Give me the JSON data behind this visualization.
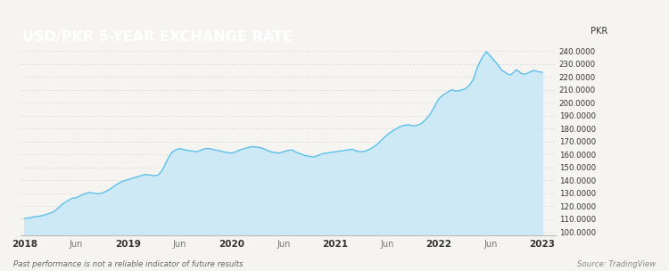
{
  "title": "USD/PKR 5-YEAR EXCHANGE RATE",
  "ylabel": "PKR",
  "source_text": "Source: TradingView",
  "disclaimer_text": "Past performance is not a reliable indicator of future results",
  "background_color": "#f5f4f0",
  "title_bg_color": "#9b6647",
  "title_text_color": "#ffffff",
  "line_color": "#5ec0ea",
  "fill_color_top": "#c8e8f8",
  "fill_color_bottom": "#e8f5fc",
  "dot_color": "#d0cdc8",
  "yticks": [
    100,
    110,
    120,
    130,
    140,
    150,
    160,
    170,
    180,
    190,
    200,
    210,
    220,
    230,
    240
  ],
  "ylim": [
    97,
    248
  ],
  "x_tick_labels": [
    "2018",
    "Jun",
    "2019",
    "Jun",
    "2020",
    "Jun",
    "2021",
    "Jun",
    "2022",
    "Jun",
    "2023"
  ],
  "x_tick_positions": [
    0,
    6,
    12,
    18,
    24,
    30,
    36,
    42,
    48,
    54,
    60
  ],
  "data_x": [
    0,
    0.5,
    1,
    1.5,
    2,
    2.5,
    3,
    3.5,
    4,
    4.5,
    5,
    5.5,
    6,
    6.5,
    7,
    7.5,
    8,
    8.5,
    9,
    9.5,
    10,
    10.5,
    11,
    11.5,
    12,
    12.5,
    13,
    13.5,
    14,
    14.5,
    15,
    15.5,
    16,
    16.5,
    17,
    17.5,
    18,
    18.3,
    18.6,
    19,
    19.5,
    20,
    20.5,
    21,
    21.5,
    22,
    22.5,
    23,
    23.5,
    24,
    24.5,
    25,
    25.5,
    26,
    26.5,
    27,
    27.5,
    28,
    28.5,
    29,
    29.5,
    30,
    30.5,
    31,
    31.5,
    32,
    32.5,
    33,
    33.5,
    34,
    34.5,
    35,
    35.5,
    36,
    36.5,
    37,
    37.5,
    38,
    38.5,
    39,
    39.5,
    40,
    40.5,
    41,
    41.5,
    42,
    42.5,
    43,
    43.5,
    44,
    44.5,
    45,
    45.5,
    46,
    46.5,
    47,
    47.5,
    48,
    48.5,
    49,
    49.5,
    50,
    50.5,
    51,
    51.5,
    52,
    52.5,
    53,
    53.5,
    54,
    54.5,
    55,
    55.3,
    55.6,
    56,
    56.3,
    56.6,
    57,
    57.3,
    57.6,
    58,
    58.5,
    59,
    59.5,
    60
  ],
  "data_y": [
    110.5,
    110.8,
    111.5,
    112.0,
    112.5,
    113.5,
    114.5,
    116.0,
    119.0,
    122.0,
    124.0,
    126.0,
    126.5,
    128.0,
    129.5,
    130.5,
    130.0,
    129.5,
    130.0,
    131.5,
    133.5,
    136.0,
    138.0,
    139.5,
    140.5,
    141.5,
    142.5,
    143.5,
    144.5,
    144.0,
    143.5,
    144.0,
    148.0,
    155.0,
    161.0,
    163.5,
    164.5,
    164.0,
    163.5,
    163.0,
    162.5,
    162.0,
    163.5,
    164.5,
    164.5,
    163.5,
    163.0,
    162.0,
    161.5,
    161.0,
    162.0,
    163.5,
    164.5,
    165.5,
    166.0,
    165.5,
    165.0,
    163.5,
    162.0,
    161.5,
    161.0,
    162.0,
    163.0,
    163.5,
    161.5,
    160.5,
    159.0,
    158.5,
    158.0,
    159.0,
    160.5,
    161.0,
    161.5,
    162.0,
    162.5,
    163.0,
    163.5,
    164.0,
    162.5,
    162.0,
    162.5,
    164.0,
    166.0,
    168.5,
    172.0,
    175.0,
    177.5,
    179.5,
    181.5,
    182.5,
    183.0,
    182.0,
    182.5,
    184.0,
    187.0,
    191.0,
    197.0,
    203.0,
    206.0,
    208.0,
    210.0,
    209.0,
    209.5,
    210.5,
    213.0,
    218.0,
    228.0,
    234.5,
    239.5,
    236.0,
    232.0,
    228.0,
    225.0,
    224.0,
    222.0,
    221.5,
    223.0,
    225.5,
    224.0,
    222.5,
    222.0,
    223.5,
    225.0,
    224.0,
    223.5
  ]
}
